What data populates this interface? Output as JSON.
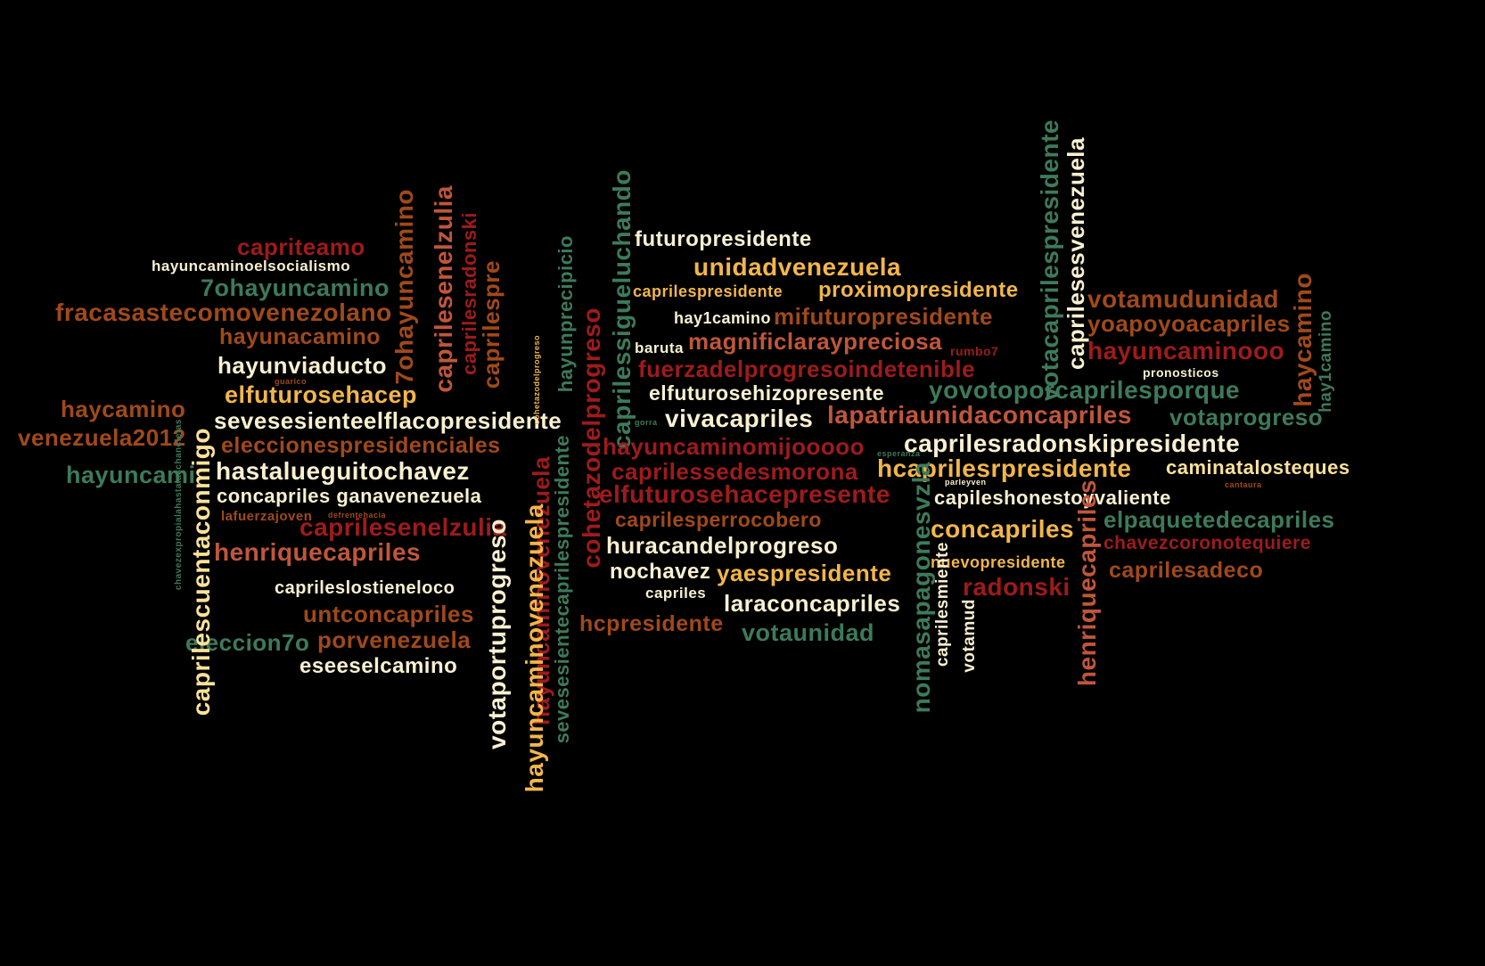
{
  "words": {
    "capriteamo": "capriteamo",
    "hayuncaminoelsocialismo": "hayuncaminoelsocialismo",
    "7ohayuncamino_h": "7ohayuncamino",
    "fracasastecomovenezolano": "fracasastecomovenezolano",
    "hayunacamino": "hayunacamino",
    "hayunviaducto": "hayunviaducto",
    "elfuturosehacep": "elfuturosehacep",
    "haycamino_left": "haycamino",
    "sevesesienteelflacopresidente": "sevesesienteelflacopresidente",
    "venezuela2012": "venezuela2012",
    "eleccionespresidenciales": "eleccionespresidenciales",
    "hayuncami": "hayuncami",
    "hastalueguitochavez": "hastalueguitochavez",
    "concapriles_ganavenezuela": "concapriles ganavenezuela",
    "lafuerzajoven": "lafuerzajoven",
    "caprilesenelzulia_h": "caprilesenelzulia",
    "henriquecapriles_h": "henriquecapriles",
    "capriles_los_tiene_loco": "caprileslostieneloco",
    "untconcapriles": "untconcapriles",
    "eleccion7o": "eleccion7o",
    "porvenezuela": "porvenezuela",
    "eseeselcamino": "eseeselcamino",
    "caprilescuentaconmigo": "caprilescuentaconmigo",
    "7ohayuncamino_v": "7ohayuncamino",
    "caprilesenelzulia_v": "caprilesenelzulia",
    "caprilesradonski": "caprilesradonski",
    "caprilespre": "caprilespre",
    "hayuncaminovenezuela": "hayuncaminovenezuela",
    "votaportuprogreso": "votaportuprogreso",
    "sevesesientecaprilespresidente": "sevesesientecaprilespresidente",
    "hayunprecipicio": "hayunprecipicio",
    "cohetazodelprogreso_v": "cohetazodelprogreso",
    "caprilessigueluchando": "caprilessigueluchando",
    "futuropresidente": "futuropresidente",
    "unidadvenezuela": "unidadvenezuela",
    "caprilespresidente": "caprilespresidente",
    "proximopresidente": "proximopresidente",
    "hay1camino": "hay1camino",
    "mifuturopresidente": "mifuturopresidente",
    "baruta": "baruta",
    "magnificlaraypreciosa": "magnificlaraypreciosa",
    "rumbo7": "rumbo7",
    "fuerzadelprogresoindetenible": "fuerzadelprogresoindetenible",
    "elfuturosehizopresente": "elfuturosehizopresente",
    "vivacapriles": "vivacapriles",
    "lapatriaunidaconcapriles": "lapatriaunidaconcapriles",
    "hayuncaminomijoooo": "hayuncaminomijooooo",
    "caprilessedesmorona": "caprilessedesmorona",
    "elfuturosehacepresente": "elfuturosehacepresente",
    "caprilesperrocobero": "caprilesperrocobero",
    "huracandelprogreso": "huracandelprogreso",
    "nochavez": "nochavez",
    "yaespresidente": "yaespresidente",
    "capriles": "capriles",
    "laraconcapriles": "laraconcapriles",
    "hcpresidente": "hcpresidente",
    "votaunidad": "votaunidad",
    "votamudunidad": "votamudunidad",
    "yoapoyoacapriles": "yoapoyoacapriles",
    "hayuncaminooo": "hayuncaminooo",
    "pronosticos": "pronosticos",
    "yovotoporcaprilesporque": "yovotoporcaprilesporque",
    "votaprogreso": "votaprogreso",
    "caprilesradonskipresidente": "caprilesradonskipresidente",
    "hcaprilesrpresidente": "hcaprilesrpresidente",
    "caminatalosteques": "caminatalosteques",
    "capileshonestoyvaliente": "capileshonestoyvaliente",
    "elpaquetedecapriles": "elpaquetedecapriles",
    "concapriles": "concapriles",
    "chavezcoronotequiere": "chavezcoronotequiere",
    "nuevopresidente": "nuevopresidente",
    "caprilesadeco": "caprilesadeco",
    "radonski": "radonski",
    "votacaprilespresidente": "votacaprilespresidente",
    "caprilesesvenezuela": "caprilesesvenezuela",
    "haycamino_v": "haycamino",
    "hay1camino_v": "hay1camino",
    "nomasapagonesvzla": "nomasapagonesvzla",
    "caprilesmiente": "caprilesmiente",
    "votamud": "votamud",
    "henriquecapriles_v": "henriquecapriles",
    "chavezexpropialahastalaschancletas": "chavezexpropialahastalaschancletas",
    "cohetazodelprogreso_small": "cohetazodelprogreso",
    "guarico": "guarico",
    "esperanza": "esperanza",
    "gorra": "gorra",
    "parleyven": "parleyven",
    "cantaura": "cantaura",
    "defrentehacia": "defrentehacia"
  },
  "colors": {
    "red": "#9e1b1b",
    "rust": "#a0491a",
    "cream": "#fbe29a",
    "gold": "#f2b64a",
    "green": "#3d7a5a",
    "white": "#f8f0d0",
    "salmon": "#c0563a",
    "background": "#000000"
  }
}
